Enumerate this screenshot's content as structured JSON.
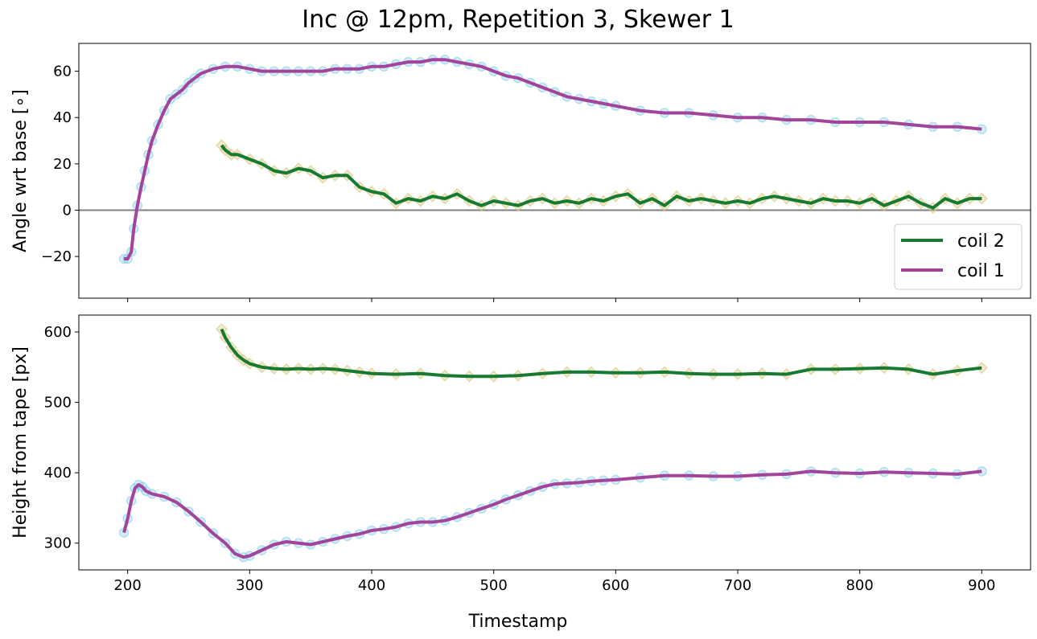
{
  "figure": {
    "title": "Inc @ 12pm, Repetition 3, Skewer 1",
    "xlabel": "Timestamp"
  },
  "colors": {
    "coil1_line": "#a3449c",
    "coil1_markers": "#87ceeb",
    "coil2_line": "#167a30",
    "coil2_markers": "#d8c57a",
    "zero_line": "#808080"
  },
  "legend": {
    "entries": [
      "coil 2",
      "coil 1"
    ],
    "placement": "lower-right"
  },
  "chart_data": [
    {
      "type": "line",
      "panel": "top",
      "ylabel": "Angle wrt base [∘]",
      "xlim": [
        160,
        940
      ],
      "ylim": [
        -38,
        72
      ],
      "xticks": [
        200,
        300,
        400,
        500,
        600,
        700,
        800,
        900
      ],
      "yticks": [
        -20,
        0,
        20,
        40,
        60
      ],
      "x_tick_labels_shown": false,
      "hline": 0,
      "series": [
        {
          "name": "coil 1",
          "marker": "circle",
          "x": [
            197,
            200,
            203,
            205,
            208,
            211,
            214,
            217,
            220,
            225,
            230,
            235,
            240,
            245,
            250,
            255,
            260,
            270,
            280,
            290,
            300,
            310,
            320,
            330,
            340,
            350,
            360,
            370,
            380,
            390,
            400,
            410,
            420,
            430,
            440,
            450,
            460,
            470,
            480,
            490,
            500,
            510,
            520,
            530,
            540,
            550,
            560,
            570,
            580,
            590,
            600,
            620,
            640,
            660,
            680,
            700,
            720,
            740,
            760,
            780,
            800,
            820,
            840,
            860,
            880,
            900
          ],
          "y": [
            -21,
            -21,
            -18,
            -8,
            2,
            10,
            17,
            24,
            30,
            37,
            43,
            48,
            50,
            52,
            55,
            57,
            59,
            61,
            62,
            62,
            61,
            60,
            60,
            60,
            60,
            60,
            60,
            61,
            61,
            61,
            62,
            62,
            63,
            64,
            64,
            65,
            65,
            64,
            63,
            62,
            60,
            58,
            57,
            55,
            53,
            51,
            49,
            48,
            47,
            46,
            45,
            43,
            42,
            42,
            41,
            40,
            40,
            39,
            39,
            38,
            38,
            38,
            37,
            36,
            36,
            35
          ]
        },
        {
          "name": "coil 2",
          "marker": "diamond",
          "x": [
            277,
            280,
            285,
            290,
            300,
            310,
            320,
            330,
            340,
            350,
            360,
            370,
            380,
            390,
            400,
            410,
            420,
            430,
            440,
            450,
            460,
            470,
            480,
            490,
            500,
            510,
            520,
            530,
            540,
            550,
            560,
            570,
            580,
            590,
            600,
            610,
            620,
            630,
            640,
            650,
            660,
            670,
            680,
            690,
            700,
            710,
            720,
            730,
            740,
            750,
            760,
            770,
            780,
            790,
            800,
            810,
            820,
            830,
            840,
            850,
            860,
            870,
            880,
            890,
            900
          ],
          "y": [
            28,
            26,
            24,
            24,
            22,
            20,
            17,
            16,
            18,
            17,
            14,
            15,
            15,
            10,
            8,
            7,
            3,
            5,
            4,
            6,
            5,
            7,
            4,
            2,
            4,
            3,
            2,
            4,
            5,
            3,
            4,
            3,
            5,
            4,
            6,
            7,
            3,
            5,
            2,
            6,
            4,
            5,
            4,
            3,
            4,
            3,
            5,
            6,
            5,
            4,
            3,
            5,
            4,
            4,
            3,
            5,
            2,
            4,
            6,
            3,
            1,
            5,
            3,
            5,
            5
          ]
        }
      ]
    },
    {
      "type": "line",
      "panel": "bottom",
      "ylabel": "Height from tape [px]",
      "xlim": [
        160,
        940
      ],
      "ylim": [
        262,
        624
      ],
      "xticks": [
        200,
        300,
        400,
        500,
        600,
        700,
        800,
        900
      ],
      "yticks": [
        300,
        400,
        500,
        600
      ],
      "series": [
        {
          "name": "coil 1",
          "marker": "circle",
          "x": [
            197,
            200,
            203,
            206,
            209,
            212,
            215,
            220,
            230,
            240,
            250,
            260,
            270,
            280,
            288,
            295,
            300,
            310,
            320,
            330,
            340,
            350,
            360,
            370,
            380,
            390,
            400,
            410,
            420,
            430,
            440,
            450,
            460,
            470,
            480,
            490,
            500,
            510,
            520,
            530,
            540,
            550,
            560,
            570,
            580,
            590,
            600,
            620,
            640,
            660,
            680,
            700,
            720,
            740,
            760,
            780,
            800,
            820,
            840,
            860,
            880,
            900
          ],
          "y": [
            315,
            335,
            360,
            378,
            383,
            380,
            374,
            370,
            366,
            358,
            345,
            330,
            314,
            300,
            285,
            280,
            282,
            290,
            298,
            302,
            300,
            298,
            302,
            306,
            310,
            313,
            318,
            320,
            323,
            328,
            330,
            330,
            332,
            337,
            343,
            349,
            355,
            362,
            368,
            374,
            380,
            384,
            385,
            386,
            388,
            389,
            390,
            393,
            396,
            396,
            395,
            395,
            397,
            398,
            402,
            400,
            399,
            401,
            400,
            399,
            398,
            402
          ]
        },
        {
          "name": "coil 2",
          "marker": "diamond",
          "x": [
            277,
            280,
            285,
            290,
            295,
            300,
            310,
            320,
            330,
            340,
            350,
            360,
            370,
            380,
            390,
            400,
            420,
            440,
            460,
            480,
            500,
            520,
            540,
            560,
            580,
            600,
            620,
            640,
            660,
            680,
            700,
            720,
            740,
            760,
            780,
            800,
            820,
            840,
            860,
            880,
            900
          ],
          "y": [
            604,
            592,
            578,
            567,
            560,
            555,
            550,
            548,
            547,
            548,
            547,
            548,
            547,
            545,
            543,
            541,
            540,
            541,
            538,
            537,
            537,
            538,
            541,
            543,
            543,
            542,
            542,
            543,
            541,
            540,
            540,
            541,
            540,
            547,
            547,
            548,
            549,
            547,
            540,
            545,
            549
          ]
        }
      ]
    }
  ]
}
